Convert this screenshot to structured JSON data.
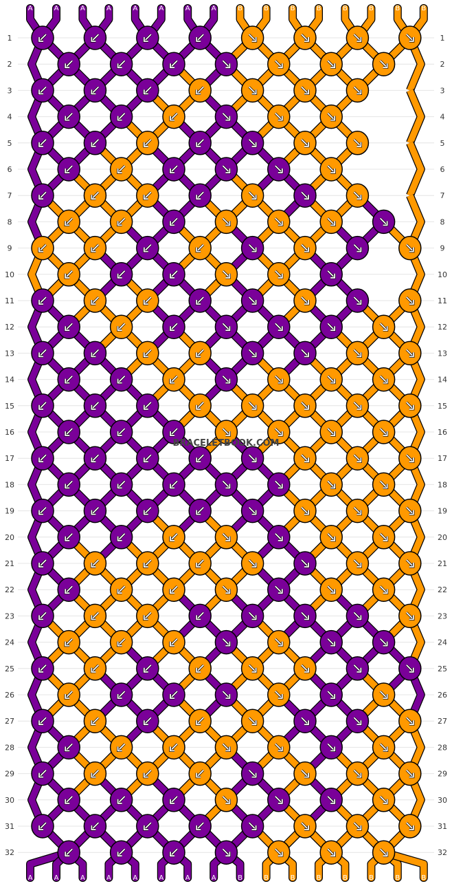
{
  "watermark": "BRACELETBOOK.COM",
  "colors": {
    "A": "#7a0099",
    "B": "#ff9900"
  },
  "strand_labels": [
    "A",
    "A",
    "A",
    "A",
    "A",
    "A",
    "A",
    "A",
    "B",
    "B",
    "B",
    "B",
    "B",
    "B",
    "B",
    "B"
  ],
  "row_numbers": [
    "1",
    "2",
    "3",
    "4",
    "5",
    "6",
    "7",
    "8",
    "9",
    "10",
    "11",
    "12",
    "13",
    "14",
    "15",
    "16",
    "17",
    "18",
    "19",
    "20",
    "21",
    "22",
    "23",
    "24",
    "25",
    "26",
    "27",
    "28",
    "29",
    "30",
    "31",
    "32"
  ],
  "knot_rows": [
    "AAAABBBB",
    "AAAABBB",
    "AAABBBB",
    "AABABB",
    "AABAABB",
    "ABAAAB",
    "ABBABAB",
    "BBABBBA",
    "BBABABAB",
    "BAABBA",
    "ABBAABAB",
    "ABAAAAB",
    "AABBAABB",
    "AABABBB",
    "AAABBBBB",
    "AAABBBB",
    "AAAAABBB",
    "AAAAABB",
    "AAAAABBB",
    "AABBABB",
    "ABBBBABB",
    "ABBBABB",
    "ABBAAAAB",
    "BBBABAA",
    "ABABBBAA",
    "BAAABAB",
    "ABABBAAB",
    "ABBBBAB",
    "ABBBABBB",
    "AAABAAB",
    "AAAAABBB",
    "AAAABBB"
  ]
}
